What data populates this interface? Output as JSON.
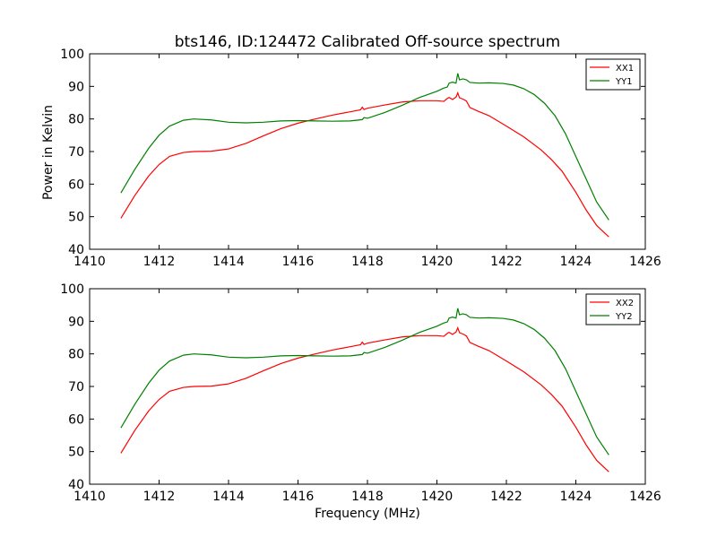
{
  "title": "bts146, ID:124472 Calibrated Off-source spectrum",
  "chart_data": [
    {
      "type": "line",
      "title": "bts146, ID:124472 Calibrated Off-source spectrum",
      "xlabel": "",
      "ylabel": "Power in Kelvin",
      "xlim": [
        1410,
        1426
      ],
      "ylim": [
        40,
        100
      ],
      "xticks": [
        1410,
        1412,
        1414,
        1416,
        1418,
        1420,
        1422,
        1424,
        1426
      ],
      "yticks": [
        40,
        50,
        60,
        70,
        80,
        90,
        100
      ],
      "legend": "top-right",
      "grid": false,
      "series": [
        {
          "name": "XX1",
          "color": "#ff0000",
          "x": [
            1410.9,
            1411.3,
            1411.7,
            1412.0,
            1412.3,
            1412.7,
            1413.0,
            1413.5,
            1414.0,
            1414.5,
            1415.0,
            1415.5,
            1416.0,
            1416.5,
            1417.0,
            1417.5,
            1417.8,
            1417.85,
            1417.9,
            1418.0,
            1418.5,
            1419.0,
            1419.5,
            1420.0,
            1420.2,
            1420.3,
            1420.35,
            1420.45,
            1420.55,
            1420.6,
            1420.65,
            1420.75,
            1420.85,
            1420.95,
            1421.2,
            1421.5,
            1422.0,
            1422.5,
            1423.0,
            1423.3,
            1423.6,
            1424.0,
            1424.3,
            1424.6,
            1424.95
          ],
          "y": [
            49.5,
            56.5,
            62.5,
            66.0,
            68.5,
            69.7,
            70.0,
            70.1,
            70.8,
            72.5,
            74.8,
            77.0,
            78.7,
            80.0,
            81.2,
            82.2,
            82.8,
            83.6,
            82.9,
            83.3,
            84.3,
            85.2,
            85.6,
            85.6,
            85.4,
            86.3,
            86.6,
            86.0,
            86.7,
            88.0,
            86.5,
            86.1,
            85.5,
            83.5,
            82.3,
            81.0,
            77.8,
            74.5,
            70.5,
            67.5,
            64.0,
            57.5,
            52.0,
            47.3,
            43.8
          ]
        },
        {
          "name": "YY1",
          "color": "#008000",
          "x": [
            1410.9,
            1411.3,
            1411.7,
            1412.0,
            1412.3,
            1412.7,
            1413.0,
            1413.5,
            1414.0,
            1414.5,
            1415.0,
            1415.5,
            1416.0,
            1416.5,
            1417.0,
            1417.5,
            1417.85,
            1417.9,
            1418.0,
            1418.5,
            1419.0,
            1419.5,
            1420.0,
            1420.2,
            1420.3,
            1420.35,
            1420.45,
            1420.55,
            1420.6,
            1420.65,
            1420.75,
            1420.85,
            1420.95,
            1421.2,
            1421.5,
            1421.9,
            1422.2,
            1422.5,
            1422.8,
            1423.1,
            1423.4,
            1423.7,
            1424.0,
            1424.3,
            1424.6,
            1424.95
          ],
          "y": [
            57.3,
            64.5,
            71.0,
            75.0,
            77.8,
            79.6,
            80.0,
            79.7,
            79.0,
            78.8,
            79.0,
            79.4,
            79.5,
            79.4,
            79.3,
            79.4,
            79.8,
            80.4,
            80.2,
            82.0,
            84.2,
            86.6,
            88.5,
            89.5,
            89.8,
            91.0,
            91.3,
            91.0,
            94.0,
            92.0,
            92.3,
            92.0,
            91.2,
            91.0,
            91.1,
            90.9,
            90.4,
            89.3,
            87.5,
            84.8,
            81.0,
            75.5,
            68.5,
            61.5,
            54.5,
            49.0
          ]
        }
      ]
    },
    {
      "type": "line",
      "title": "",
      "xlabel": "Frequency (MHz)",
      "ylabel": "",
      "xlim": [
        1410,
        1426
      ],
      "ylim": [
        40,
        100
      ],
      "xticks": [
        1410,
        1412,
        1414,
        1416,
        1418,
        1420,
        1422,
        1424,
        1426
      ],
      "yticks": [
        40,
        50,
        60,
        70,
        80,
        90,
        100
      ],
      "legend": "top-right",
      "grid": false,
      "series": [
        {
          "name": "XX2",
          "color": "#ff0000",
          "x": [
            1410.9,
            1411.3,
            1411.7,
            1412.0,
            1412.3,
            1412.7,
            1413.0,
            1413.5,
            1414.0,
            1414.5,
            1415.0,
            1415.5,
            1416.0,
            1416.5,
            1417.0,
            1417.5,
            1417.8,
            1417.85,
            1417.9,
            1418.0,
            1418.5,
            1419.0,
            1419.5,
            1420.0,
            1420.2,
            1420.3,
            1420.35,
            1420.45,
            1420.55,
            1420.6,
            1420.65,
            1420.75,
            1420.85,
            1420.95,
            1421.2,
            1421.5,
            1422.0,
            1422.5,
            1423.0,
            1423.3,
            1423.6,
            1424.0,
            1424.3,
            1424.6,
            1424.95
          ],
          "y": [
            49.5,
            56.5,
            62.5,
            66.0,
            68.5,
            69.7,
            70.0,
            70.1,
            70.8,
            72.5,
            74.8,
            77.0,
            78.7,
            80.0,
            81.2,
            82.2,
            82.8,
            83.6,
            82.9,
            83.3,
            84.3,
            85.2,
            85.6,
            85.6,
            85.4,
            86.3,
            86.6,
            86.0,
            86.7,
            88.0,
            86.5,
            86.1,
            85.5,
            83.5,
            82.3,
            81.0,
            77.8,
            74.5,
            70.5,
            67.5,
            64.0,
            57.5,
            52.0,
            47.3,
            43.8
          ]
        },
        {
          "name": "YY2",
          "color": "#008000",
          "x": [
            1410.9,
            1411.3,
            1411.7,
            1412.0,
            1412.3,
            1412.7,
            1413.0,
            1413.5,
            1414.0,
            1414.5,
            1415.0,
            1415.5,
            1416.0,
            1416.5,
            1417.0,
            1417.5,
            1417.85,
            1417.9,
            1418.0,
            1418.5,
            1419.0,
            1419.5,
            1420.0,
            1420.2,
            1420.3,
            1420.35,
            1420.45,
            1420.55,
            1420.6,
            1420.65,
            1420.75,
            1420.85,
            1420.95,
            1421.2,
            1421.5,
            1421.9,
            1422.2,
            1422.5,
            1422.8,
            1423.1,
            1423.4,
            1423.7,
            1424.0,
            1424.3,
            1424.6,
            1424.95
          ],
          "y": [
            57.3,
            64.5,
            71.0,
            75.0,
            77.8,
            79.6,
            80.0,
            79.7,
            79.0,
            78.8,
            79.0,
            79.4,
            79.5,
            79.4,
            79.3,
            79.4,
            79.8,
            80.4,
            80.2,
            82.0,
            84.2,
            86.6,
            88.5,
            89.5,
            89.8,
            91.0,
            91.3,
            91.0,
            94.0,
            92.0,
            92.3,
            92.0,
            91.2,
            91.0,
            91.1,
            90.9,
            90.4,
            89.3,
            87.5,
            84.8,
            81.0,
            75.5,
            68.5,
            61.5,
            54.5,
            49.0
          ]
        }
      ]
    }
  ]
}
